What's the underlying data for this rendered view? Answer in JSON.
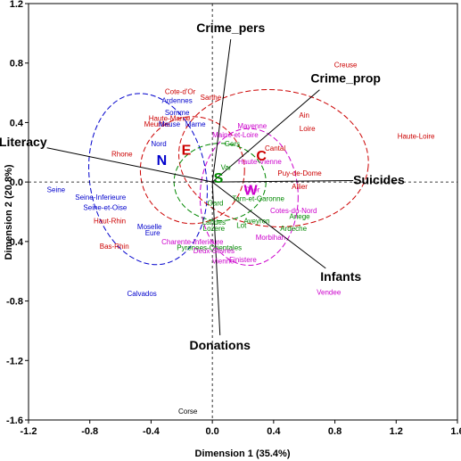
{
  "chart_data": {
    "type": "scatter",
    "title": "",
    "xlabel": "Dimension 1 (35.4%)",
    "ylabel": "Dimension 2 (20.8%)",
    "xlim": [
      -1.2,
      1.6
    ],
    "ylim": [
      -1.6,
      1.2
    ],
    "xticks": [
      "-1.2",
      "-0.8",
      "-0.4",
      "0.0",
      "0.4",
      "0.8",
      "1.2",
      "1.6"
    ],
    "yticks": [
      "1.2",
      "0.8",
      "0.4",
      "0.0",
      "-0.4",
      "-0.8",
      "-1.2",
      "-1.6"
    ],
    "reference_lines": "dashed lines at x=0 and y=0",
    "colors": {
      "C": "#cc0000",
      "E": "#cc0000",
      "N": "#0000cc",
      "S": "#008800",
      "W": "#cc00cc",
      "other": "#000000"
    },
    "vectors": [
      {
        "name": "Crime_pers",
        "x": 0.12,
        "y": 0.96
      },
      {
        "name": "Crime_prop",
        "x": 0.7,
        "y": 0.62
      },
      {
        "name": "Literacy",
        "x": -1.08,
        "y": 0.23
      },
      {
        "name": "Suicides",
        "x": 0.92,
        "y": 0.01
      },
      {
        "name": "Infants",
        "x": 0.74,
        "y": -0.58
      },
      {
        "name": "Donations",
        "x": 0.05,
        "y": -1.03
      }
    ],
    "group_centroids": [
      {
        "label": "N",
        "x": -0.33,
        "y": 0.15
      },
      {
        "label": "E",
        "x": -0.17,
        "y": 0.22
      },
      {
        "label": "C",
        "x": 0.32,
        "y": 0.18
      },
      {
        "label": "S",
        "x": 0.04,
        "y": 0.03
      },
      {
        "label": "W",
        "x": 0.25,
        "y": -0.05
      }
    ],
    "ellipses": [
      {
        "group": "N",
        "cx": -0.42,
        "cy": 0.02,
        "rx": 0.38,
        "ry": 0.58,
        "angle": 10
      },
      {
        "group": "E",
        "cx": -0.13,
        "cy": 0.08,
        "rx": 0.34,
        "ry": 0.36,
        "angle": 0
      },
      {
        "group": "C",
        "cx": 0.4,
        "cy": 0.16,
        "rx": 0.62,
        "ry": 0.46,
        "angle": -5
      },
      {
        "group": "S",
        "cx": 0.05,
        "cy": 0.0,
        "rx": 0.3,
        "ry": 0.26,
        "angle": 0
      },
      {
        "group": "W",
        "cx": 0.24,
        "cy": -0.1,
        "rx": 0.32,
        "ry": 0.46,
        "angle": 0
      }
    ],
    "points": [
      {
        "label": "Creuse",
        "x": 0.87,
        "y": 0.79,
        "group": "C"
      },
      {
        "label": "Haute-Loire",
        "x": 1.33,
        "y": 0.31,
        "group": "C"
      },
      {
        "label": "Ain",
        "x": 0.6,
        "y": 0.45,
        "group": "C"
      },
      {
        "label": "Loire",
        "x": 0.62,
        "y": 0.36,
        "group": "C"
      },
      {
        "label": "Cantal",
        "x": 0.41,
        "y": 0.23,
        "group": "C"
      },
      {
        "label": "Puy-de-Dome",
        "x": 0.57,
        "y": 0.06,
        "group": "C"
      },
      {
        "label": "Allier",
        "x": 0.57,
        "y": -0.03,
        "group": "C"
      },
      {
        "label": "Cote-d'Or",
        "x": -0.21,
        "y": 0.61,
        "group": "E"
      },
      {
        "label": "Sarthe",
        "x": -0.01,
        "y": 0.57,
        "group": "E"
      },
      {
        "label": "Haute-Marne",
        "x": -0.28,
        "y": 0.43,
        "group": "E"
      },
      {
        "label": "Meurthe",
        "x": -0.36,
        "y": 0.39,
        "group": "E"
      },
      {
        "label": "Rhone",
        "x": -0.59,
        "y": 0.19,
        "group": "E"
      },
      {
        "label": "Haut-Rhin",
        "x": -0.67,
        "y": -0.26,
        "group": "E"
      },
      {
        "label": "Bas-Rhin",
        "x": -0.64,
        "y": -0.43,
        "group": "E"
      },
      {
        "label": "Ardennes",
        "x": -0.23,
        "y": 0.55,
        "group": "N"
      },
      {
        "label": "Meuse",
        "x": -0.28,
        "y": 0.39,
        "group": "N"
      },
      {
        "label": "Somme",
        "x": -0.23,
        "y": 0.47,
        "group": "N"
      },
      {
        "label": "Marne",
        "x": -0.11,
        "y": 0.39,
        "group": "N"
      },
      {
        "label": "Nord",
        "x": -0.35,
        "y": 0.26,
        "group": "N"
      },
      {
        "label": "Seine",
        "x": -1.02,
        "y": -0.05,
        "group": "N"
      },
      {
        "label": "Seine-Inferieure",
        "x": -0.73,
        "y": -0.1,
        "group": "N"
      },
      {
        "label": "Seine-et-Oise",
        "x": -0.7,
        "y": -0.17,
        "group": "N"
      },
      {
        "label": "Moselle",
        "x": -0.41,
        "y": -0.3,
        "group": "N"
      },
      {
        "label": "Eure",
        "x": -0.39,
        "y": -0.34,
        "group": "N"
      },
      {
        "label": "Calvados",
        "x": -0.46,
        "y": -0.75,
        "group": "N"
      },
      {
        "label": "Gers",
        "x": 0.13,
        "y": 0.26,
        "group": "S"
      },
      {
        "label": "Var",
        "x": 0.09,
        "y": 0.1,
        "group": "S"
      },
      {
        "label": "Gard",
        "x": 0.02,
        "y": -0.14,
        "group": "S"
      },
      {
        "label": "Lot",
        "x": 0.19,
        "y": -0.29,
        "group": "S"
      },
      {
        "label": "Tarn-et-Garonne",
        "x": 0.3,
        "y": -0.11,
        "group": "S"
      },
      {
        "label": "Aveyron",
        "x": 0.29,
        "y": -0.26,
        "group": "S"
      },
      {
        "label": "Pyrenees-Orientales",
        "x": -0.02,
        "y": -0.44,
        "group": "S"
      },
      {
        "label": "Ariege",
        "x": 0.57,
        "y": -0.23,
        "group": "S"
      },
      {
        "label": "Ardeche",
        "x": 0.53,
        "y": -0.31,
        "group": "S"
      },
      {
        "label": "Landes",
        "x": 0.01,
        "y": -0.27,
        "group": "S"
      },
      {
        "label": "Lozere",
        "x": 0.01,
        "y": -0.31,
        "group": "S"
      },
      {
        "label": "Vendee",
        "x": 0.76,
        "y": -0.74,
        "group": "W"
      },
      {
        "label": "Cotes-du-Nord",
        "x": 0.53,
        "y": -0.19,
        "group": "W"
      },
      {
        "label": "Morbihan",
        "x": 0.38,
        "y": -0.37,
        "group": "W"
      },
      {
        "label": "Finistere",
        "x": 0.2,
        "y": -0.52,
        "group": "W"
      },
      {
        "label": "Vienne",
        "x": 0.07,
        "y": -0.53,
        "group": "W"
      },
      {
        "label": "Deux-Sevres",
        "x": 0.01,
        "y": -0.46,
        "group": "W"
      },
      {
        "label": "Charente-Inferieure",
        "x": -0.13,
        "y": -0.4,
        "group": "W"
      },
      {
        "label": "Mayenne",
        "x": 0.26,
        "y": 0.38,
        "group": "W"
      },
      {
        "label": "Maine-et-Loire",
        "x": 0.15,
        "y": 0.32,
        "group": "W"
      },
      {
        "label": "Cher",
        "x": 0.26,
        "y": -0.05,
        "group": "W"
      },
      {
        "label": "Haute-Vienne",
        "x": 0.31,
        "y": 0.14,
        "group": "W"
      },
      {
        "label": "Corse",
        "x": -0.16,
        "y": -1.54,
        "group": "other"
      }
    ]
  }
}
